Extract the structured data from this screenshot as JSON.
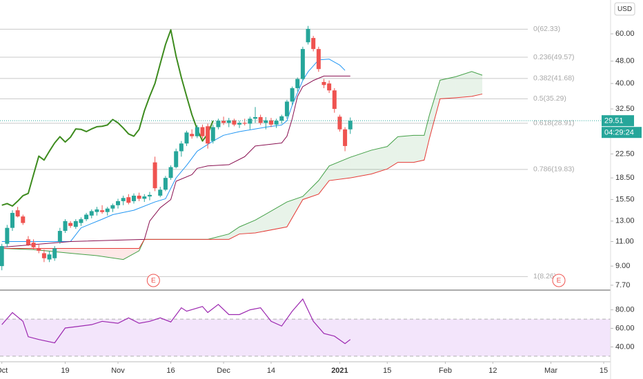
{
  "chart_data": [
    {
      "type": "candlestick",
      "currency": "USD",
      "log_scale": true,
      "xlim": [
        -2.35,
        113.3
      ],
      "ylim": [
        7.44,
        79.1
      ],
      "yticks": [
        {
          "value": 7.7,
          "label": "7.70"
        },
        {
          "value": 9,
          "label": "9.00"
        },
        {
          "value": 11,
          "label": "11.00"
        },
        {
          "value": 13,
          "label": "13.00"
        },
        {
          "value": 15.5,
          "label": "15.50"
        },
        {
          "value": 18.5,
          "label": "18.50"
        },
        {
          "value": 22.5,
          "label": "22.50"
        },
        {
          "value": 32.5,
          "label": "32.50"
        },
        {
          "value": 40,
          "label": "40.00"
        },
        {
          "value": 48,
          "label": "48.00"
        },
        {
          "value": 60,
          "label": "60.00"
        }
      ],
      "up_color": "#26a69a",
      "down_color": "#ef5350",
      "x": [
        -2,
        -1,
        0,
        1,
        2,
        3,
        4,
        5,
        6,
        7,
        8,
        9,
        10,
        11,
        12,
        13,
        14,
        15,
        16,
        17,
        18,
        19,
        20,
        21,
        22,
        23,
        24,
        25,
        26,
        27,
        28,
        29,
        30,
        31,
        32,
        33,
        34,
        35,
        36,
        37,
        38,
        39,
        40,
        41,
        42,
        43,
        44,
        45,
        46,
        47,
        48,
        49,
        50,
        51,
        52,
        53,
        54,
        55,
        56,
        57,
        58,
        59,
        60,
        61,
        62,
        63,
        64
      ],
      "ohlc": [
        [
          9.0,
          10.8,
          8.7,
          10.6
        ],
        [
          10.8,
          12.6,
          10.5,
          12.3
        ],
        [
          12.3,
          14.2,
          12.0,
          13.9
        ],
        [
          14.2,
          14.6,
          13.4,
          13.5
        ],
        [
          13.5,
          13.7,
          12.6,
          12.8
        ],
        [
          11.2,
          11.5,
          10.6,
          10.7
        ],
        [
          10.9,
          11.2,
          10.3,
          10.5
        ],
        [
          10.4,
          10.8,
          10.0,
          10.2
        ],
        [
          10.0,
          10.3,
          9.3,
          9.6
        ],
        [
          9.5,
          10.2,
          9.3,
          9.9
        ],
        [
          9.6,
          10.6,
          9.4,
          10.4
        ],
        [
          11.0,
          12.3,
          10.8,
          12.0
        ],
        [
          12.0,
          13.2,
          11.8,
          13.0
        ],
        [
          12.8,
          13.0,
          12.3,
          12.5
        ],
        [
          12.4,
          13.2,
          12.2,
          13.0
        ],
        [
          12.8,
          13.4,
          12.5,
          13.2
        ],
        [
          13.2,
          13.9,
          13.0,
          13.7
        ],
        [
          13.6,
          14.3,
          13.3,
          14.1
        ],
        [
          14.0,
          14.6,
          13.6,
          14.3
        ],
        [
          14.2,
          14.8,
          13.8,
          14.0
        ],
        [
          14.0,
          14.6,
          13.6,
          14.4
        ],
        [
          14.4,
          15.0,
          14.0,
          14.8
        ],
        [
          14.8,
          15.6,
          14.4,
          15.3
        ],
        [
          15.3,
          16.0,
          14.8,
          15.7
        ],
        [
          15.8,
          16.2,
          14.9,
          15.1
        ],
        [
          15.3,
          16.3,
          15.0,
          16.0
        ],
        [
          16.0,
          16.4,
          15.3,
          15.6
        ],
        [
          15.6,
          16.2,
          15.2,
          15.9
        ],
        [
          15.9,
          16.5,
          15.4,
          16.1
        ],
        [
          21.0,
          22.0,
          16.6,
          17.0
        ],
        [
          16.0,
          17.2,
          15.8,
          16.8
        ],
        [
          16.8,
          18.8,
          16.6,
          18.5
        ],
        [
          18.5,
          20.5,
          18.2,
          20.2
        ],
        [
          20.2,
          23.5,
          20.0,
          23.0
        ],
        [
          23.0,
          25.0,
          22.0,
          24.5
        ],
        [
          24.5,
          27.2,
          24.0,
          26.8
        ],
        [
          26.5,
          27.5,
          25.5,
          26.0
        ],
        [
          26.0,
          28.5,
          25.6,
          28.0
        ],
        [
          28.0,
          28.6,
          25.5,
          26.0
        ],
        [
          28.2,
          28.8,
          23.5,
          24.5
        ],
        [
          25.0,
          28.6,
          24.5,
          28.0
        ],
        [
          28.0,
          30.0,
          27.5,
          29.5
        ],
        [
          29.5,
          30.5,
          28.5,
          29.0
        ],
        [
          29.0,
          30.2,
          28.0,
          29.6
        ],
        [
          29.6,
          30.0,
          28.2,
          28.6
        ],
        [
          28.6,
          29.5,
          27.8,
          29.0
        ],
        [
          29.0,
          30.0,
          28.4,
          28.8
        ],
        [
          28.8,
          30.5,
          27.5,
          30.0
        ],
        [
          30.0,
          33.0,
          29.0,
          30.4
        ],
        [
          30.4,
          31.0,
          28.5,
          29.0
        ],
        [
          29.0,
          30.4,
          27.5,
          29.6
        ],
        [
          29.6,
          30.2,
          28.0,
          28.6
        ],
        [
          28.6,
          30.0,
          27.8,
          29.5
        ],
        [
          29.5,
          31.0,
          28.8,
          30.6
        ],
        [
          30.6,
          35.0,
          30.0,
          34.5
        ],
        [
          34.5,
          39.0,
          33.5,
          38.5
        ],
        [
          38.5,
          42.0,
          37.5,
          41.5
        ],
        [
          41.5,
          54.0,
          41.0,
          53.0
        ],
        [
          56.0,
          64.0,
          55.0,
          62.5
        ],
        [
          58.0,
          59.0,
          52.0,
          53.0
        ],
        [
          53.0,
          54.0,
          44.0,
          45.0
        ],
        [
          40.5,
          41.5,
          38.5,
          39.5
        ],
        [
          40.0,
          41.0,
          37.0,
          37.8
        ],
        [
          37.8,
          38.5,
          31.5,
          32.5
        ],
        [
          30.5,
          31.0,
          27.0,
          27.5
        ],
        [
          27.5,
          28.0,
          23.0,
          24.0
        ],
        [
          27.5,
          30.3,
          26.5,
          29.51
        ]
      ],
      "lines": [
        {
          "color": "#3d8b1e",
          "width": 2,
          "x": [
            -2,
            -1,
            0,
            1,
            2,
            3,
            4,
            5,
            6,
            7,
            8,
            9,
            10,
            11,
            12,
            13,
            14,
            15,
            16,
            17,
            18,
            19,
            20,
            21,
            22,
            23,
            24,
            25,
            26,
            27,
            28,
            29,
            30,
            31,
            32,
            33,
            34,
            35,
            36,
            37,
            38
          ],
          "values": [
            14.8,
            15.0,
            14.7,
            15.3,
            16.0,
            16.3,
            19.0,
            22.1,
            21.4,
            23.0,
            24.6,
            25.9,
            24.8,
            25.8,
            27.6,
            27.5,
            27.0,
            27.6,
            28.1,
            28.2,
            28.5,
            29.8,
            29.0,
            27.8,
            26.5,
            26.0,
            27.5,
            32.0,
            36.0,
            40.0,
            47.0,
            55.0,
            62.0,
            50.0,
            42.0,
            36.0,
            31.0,
            27.5,
            25.0,
            26.5,
            29.5
          ]
        },
        {
          "color": "#2196f3",
          "width": 1,
          "x": [
            -2,
            11,
            13,
            17,
            19,
            23,
            27,
            29,
            31,
            33,
            35,
            38,
            40,
            43,
            48,
            51,
            52,
            53,
            55,
            56,
            58,
            60,
            62,
            63
          ],
          "values": [
            11.0,
            11.0,
            12.3,
            13.2,
            13.7,
            14.2,
            15.2,
            15.6,
            18.5,
            20.5,
            23.0,
            25.0,
            26.2,
            27.0,
            28.0,
            28.5,
            29.5,
            33.5,
            41.0,
            44.0,
            48.5,
            48.8,
            46.5,
            44.5
          ]
        },
        {
          "color": "#880e4f",
          "width": 1,
          "x": [
            -2,
            11,
            25,
            26,
            28,
            30,
            31,
            34,
            35,
            37,
            41,
            44,
            46,
            51,
            52,
            53,
            54,
            55,
            57,
            59,
            64
          ],
          "values": [
            10.5,
            11.0,
            11.2,
            13.0,
            14.5,
            15.5,
            18.0,
            19.0,
            20.0,
            20.4,
            20.6,
            22.0,
            24.0,
            24.6,
            26.0,
            30.0,
            36.0,
            39.0,
            41.0,
            42.5,
            42.5
          ]
        }
      ],
      "cloud": {
        "x": [
          -2,
          4,
          11,
          16,
          21,
          24,
          25,
          37,
          41,
          43,
          46,
          52,
          55,
          58,
          60,
          64,
          68,
          71,
          73,
          76,
          78,
          79,
          81,
          84,
          87,
          89
        ],
        "span_a": [
          10.4,
          10.3,
          10.0,
          9.8,
          9.5,
          10.2,
          11.2,
          11.2,
          11.7,
          12.4,
          13.1,
          15.2,
          15.9,
          18.1,
          20.4,
          21.9,
          23.2,
          23.9,
          25.9,
          26.2,
          26.2,
          31.0,
          41.1,
          42.3,
          44.1,
          42.8
        ],
        "span_b": [
          10.4,
          10.4,
          10.4,
          10.4,
          10.4,
          10.4,
          11.2,
          11.2,
          11.2,
          11.7,
          11.8,
          12.4,
          15.5,
          16.2,
          18.1,
          18.5,
          19.1,
          19.9,
          21.0,
          21.0,
          21.4,
          25.6,
          35.3,
          35.6,
          36.0,
          36.7
        ],
        "span_a_color": "#43a047",
        "span_b_color": "#e53935",
        "up_fill": "rgba(67,160,71,0.12)",
        "down_fill": "rgba(244,67,54,0.12)"
      },
      "fib_levels": [
        {
          "value": 62.33,
          "label": "0(62.33)"
        },
        {
          "value": 49.57,
          "label": "0.236(49.57)"
        },
        {
          "value": 41.68,
          "label": "0.382(41.68)"
        },
        {
          "value": 35.29,
          "label": "0.5(35.29)"
        },
        {
          "value": 28.91,
          "label": "0.618(28.91)"
        },
        {
          "value": 19.83,
          "label": "0.786(19.83)"
        },
        {
          "value": 8.26,
          "label": "1(8.26)"
        }
      ],
      "last_price": 29.51,
      "countdown": "04:29:24",
      "earnings": [
        {
          "x": 26.7,
          "label": "E"
        },
        {
          "x": 103.5,
          "label": "E"
        }
      ]
    },
    {
      "type": "line",
      "color": "#9c27b0",
      "band_fill": "#f3e5fb",
      "xlim": [
        -2.35,
        113.3
      ],
      "ylim": [
        24,
        100.5
      ],
      "yticks": [
        {
          "value": 80,
          "label": "80.00"
        },
        {
          "value": 60,
          "label": "60.00"
        },
        {
          "value": 40,
          "label": "40.00"
        }
      ],
      "bands": [
        30,
        70
      ],
      "x": [
        -2,
        0,
        2,
        3,
        5,
        8,
        10,
        12,
        15,
        17,
        20,
        22,
        24,
        26,
        28,
        30,
        32,
        33,
        36,
        37,
        39,
        41,
        43,
        45,
        47,
        49,
        51,
        53,
        55,
        57,
        59,
        61,
        63,
        64
      ],
      "values": [
        64,
        77,
        67.6,
        51,
        48,
        44.4,
        60.4,
        61.8,
        64,
        67.6,
        65.5,
        71.3,
        65.5,
        67.6,
        71.3,
        66.9,
        82.2,
        78.5,
        83.6,
        77.1,
        85.8,
        74.9,
        74.9,
        80,
        82.2,
        67.6,
        62.5,
        78.5,
        91.6,
        67.6,
        54.5,
        51.6,
        43.6,
        48
      ],
      "xticks": [
        {
          "value": -2,
          "label": "Oct"
        },
        {
          "value": 10,
          "label": "19"
        },
        {
          "value": 20,
          "label": "Nov"
        },
        {
          "value": 30,
          "label": "16"
        },
        {
          "value": 40,
          "label": "Dec"
        },
        {
          "value": 49,
          "label": "14"
        },
        {
          "value": 62,
          "label": "2021",
          "bold": true
        },
        {
          "value": 71,
          "label": "15"
        },
        {
          "value": 82,
          "label": "Feb"
        },
        {
          "value": 91,
          "label": "12"
        },
        {
          "value": 102,
          "label": "Mar"
        },
        {
          "value": 112,
          "label": "15"
        }
      ]
    }
  ]
}
